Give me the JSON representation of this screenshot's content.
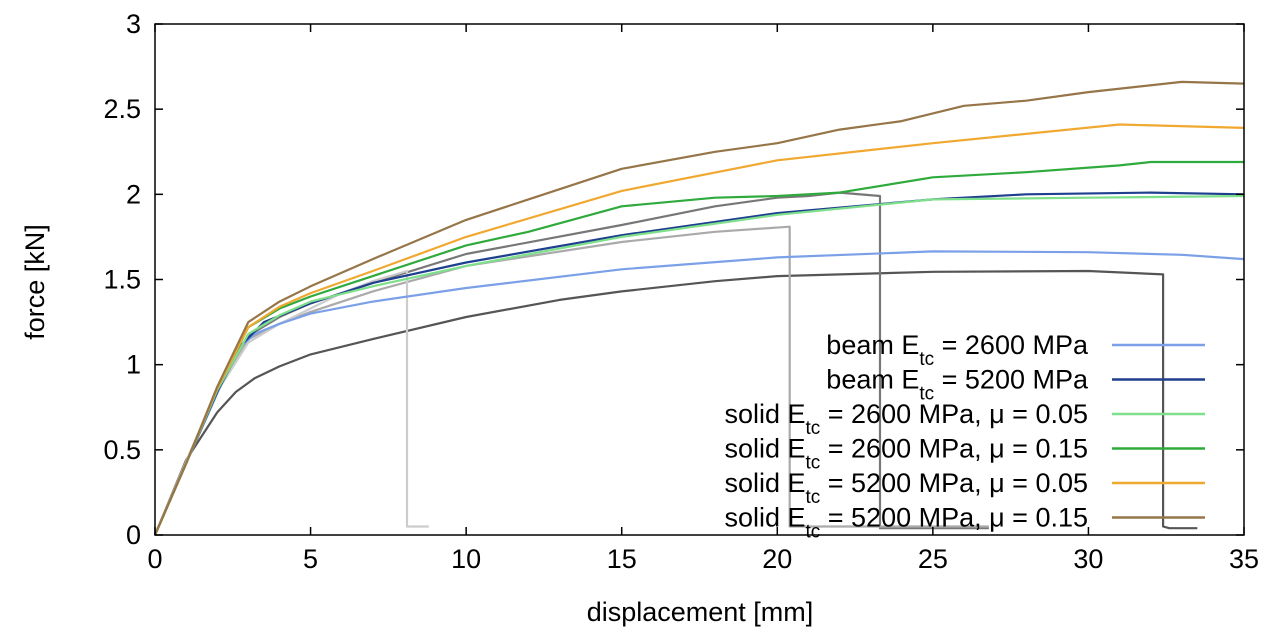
{
  "chart_data": {
    "type": "line",
    "title": "",
    "xlabel": "displacement [mm]",
    "ylabel": "force [kN]",
    "xlim": [
      0,
      35
    ],
    "ylim": [
      0,
      3
    ],
    "x_ticks": [
      "0",
      "5",
      "10",
      "15",
      "20",
      "25",
      "30",
      "35"
    ],
    "y_ticks": [
      "0",
      "0.5",
      "1",
      "1.5",
      "2",
      "2.5",
      "3"
    ],
    "grid": false,
    "legend_position": "bottom-right",
    "legend": [
      {
        "prefix": "beam E",
        "sub": "tc",
        "suffix": " = 2600 MPa",
        "color": "#7ba0e8"
      },
      {
        "prefix": "beam E",
        "sub": "tc",
        "suffix": " = 5200 MPa",
        "color": "#1f3f8f"
      },
      {
        "prefix": "solid E",
        "sub": "tc",
        "suffix": " = 2600 MPa, μ = 0.05",
        "color": "#7ee08a"
      },
      {
        "prefix": "solid E",
        "sub": "tc",
        "suffix": " = 2600 MPa, μ = 0.15",
        "color": "#2faa3c"
      },
      {
        "prefix": "solid E",
        "sub": "tc",
        "suffix": " = 5200 MPa, μ = 0.05",
        "color": "#f0a830"
      },
      {
        "prefix": "solid E",
        "sub": "tc",
        "suffix": " = 5200 MPa, μ = 0.15",
        "color": "#967548"
      }
    ],
    "series": [
      {
        "name": "beam Etc = 2600 MPa",
        "color": "#7ba0e8",
        "width": 2.2,
        "x": [
          0,
          1,
          2,
          2.6,
          3.2,
          4,
          5,
          7,
          10,
          15,
          20,
          25,
          30,
          33,
          35
        ],
        "y": [
          0,
          0.42,
          0.83,
          1.08,
          1.18,
          1.24,
          1.3,
          1.37,
          1.45,
          1.56,
          1.63,
          1.665,
          1.66,
          1.645,
          1.62
        ]
      },
      {
        "name": "beam Etc = 5200 MPa",
        "color": "#1f3f8f",
        "width": 2.2,
        "x": [
          0,
          1,
          2,
          2.8,
          3.5,
          5,
          7,
          10,
          15,
          20,
          25,
          28,
          32,
          35
        ],
        "y": [
          0,
          0.42,
          0.84,
          1.12,
          1.25,
          1.36,
          1.48,
          1.6,
          1.76,
          1.89,
          1.97,
          2.0,
          2.01,
          2.0
        ]
      },
      {
        "name": "solid Etc = 2600 MPa, μ = 0.05",
        "color": "#7ee08a",
        "width": 2.2,
        "x": [
          0,
          1,
          2,
          3,
          4,
          5,
          7,
          10,
          15,
          20,
          25,
          30,
          35
        ],
        "y": [
          0,
          0.42,
          0.85,
          1.18,
          1.29,
          1.37,
          1.46,
          1.58,
          1.75,
          1.88,
          1.97,
          1.98,
          1.99
        ]
      },
      {
        "name": "solid Etc = 2600 MPa, μ = 0.15",
        "color": "#2faa3c",
        "width": 2.2,
        "x": [
          0,
          1,
          2,
          3,
          4,
          5,
          7,
          10,
          12,
          15,
          18,
          20,
          22,
          25,
          28,
          31,
          32,
          35
        ],
        "y": [
          0,
          0.42,
          0.86,
          1.22,
          1.33,
          1.4,
          1.52,
          1.7,
          1.78,
          1.93,
          1.98,
          1.99,
          2.01,
          2.1,
          2.13,
          2.17,
          2.19,
          2.19
        ]
      },
      {
        "name": "solid Etc = 5200 MPa, μ = 0.05",
        "color": "#f0a830",
        "width": 2.2,
        "x": [
          0,
          1,
          2,
          3,
          4,
          5,
          7,
          10,
          15,
          20,
          25,
          31,
          35
        ],
        "y": [
          0,
          0.42,
          0.86,
          1.22,
          1.34,
          1.42,
          1.55,
          1.75,
          2.02,
          2.2,
          2.3,
          2.41,
          2.39
        ]
      },
      {
        "name": "solid Etc = 5200 MPa, μ = 0.15",
        "color": "#967548",
        "width": 2.2,
        "x": [
          0,
          1,
          2,
          3,
          4,
          5,
          7,
          10,
          12,
          15,
          18,
          20,
          22,
          24,
          26,
          28,
          30,
          33,
          35
        ],
        "y": [
          0,
          0.42,
          0.87,
          1.25,
          1.37,
          1.46,
          1.62,
          1.85,
          1.97,
          2.15,
          2.25,
          2.3,
          2.38,
          2.43,
          2.52,
          2.55,
          2.6,
          2.66,
          2.65
        ]
      },
      {
        "color": "#555555",
        "width": 2.2,
        "x": [
          0,
          1,
          2,
          2.6,
          3.2,
          4,
          5,
          7,
          10,
          13,
          15,
          18,
          20,
          25,
          30,
          32.4,
          32.4,
          32.6,
          33.5
        ],
        "y": [
          0,
          0.44,
          0.72,
          0.84,
          0.92,
          0.99,
          1.06,
          1.15,
          1.28,
          1.38,
          1.43,
          1.49,
          1.52,
          1.545,
          1.55,
          1.53,
          0.05,
          0.04,
          0.04
        ]
      },
      {
        "color": "#777777",
        "width": 2.2,
        "x": [
          0,
          1,
          2,
          3,
          4,
          5,
          7,
          10,
          15,
          18,
          20,
          21,
          22,
          23.3,
          23.3,
          23.6,
          26.8
        ],
        "y": [
          0,
          0.43,
          0.85,
          1.17,
          1.28,
          1.36,
          1.48,
          1.65,
          1.82,
          1.93,
          1.98,
          1.99,
          2.01,
          1.99,
          0.04,
          0.04,
          0.04
        ]
      },
      {
        "color": "#aaaaaa",
        "width": 2.2,
        "x": [
          0,
          1,
          2,
          3,
          4,
          5,
          7,
          10,
          15,
          18,
          20.4,
          20.4,
          20.6,
          26.8
        ],
        "y": [
          0,
          0.43,
          0.85,
          1.15,
          1.24,
          1.31,
          1.43,
          1.58,
          1.72,
          1.78,
          1.81,
          0.05,
          0.05,
          0.05
        ]
      },
      {
        "color": "#cccccc",
        "width": 2.2,
        "x": [
          0,
          1,
          2,
          3,
          4,
          5,
          6,
          7,
          8.1,
          8.1,
          8.3,
          8.8
        ],
        "y": [
          0,
          0.43,
          0.84,
          1.13,
          1.24,
          1.33,
          1.42,
          1.49,
          1.55,
          0.05,
          0.05,
          0.05
        ]
      }
    ]
  }
}
